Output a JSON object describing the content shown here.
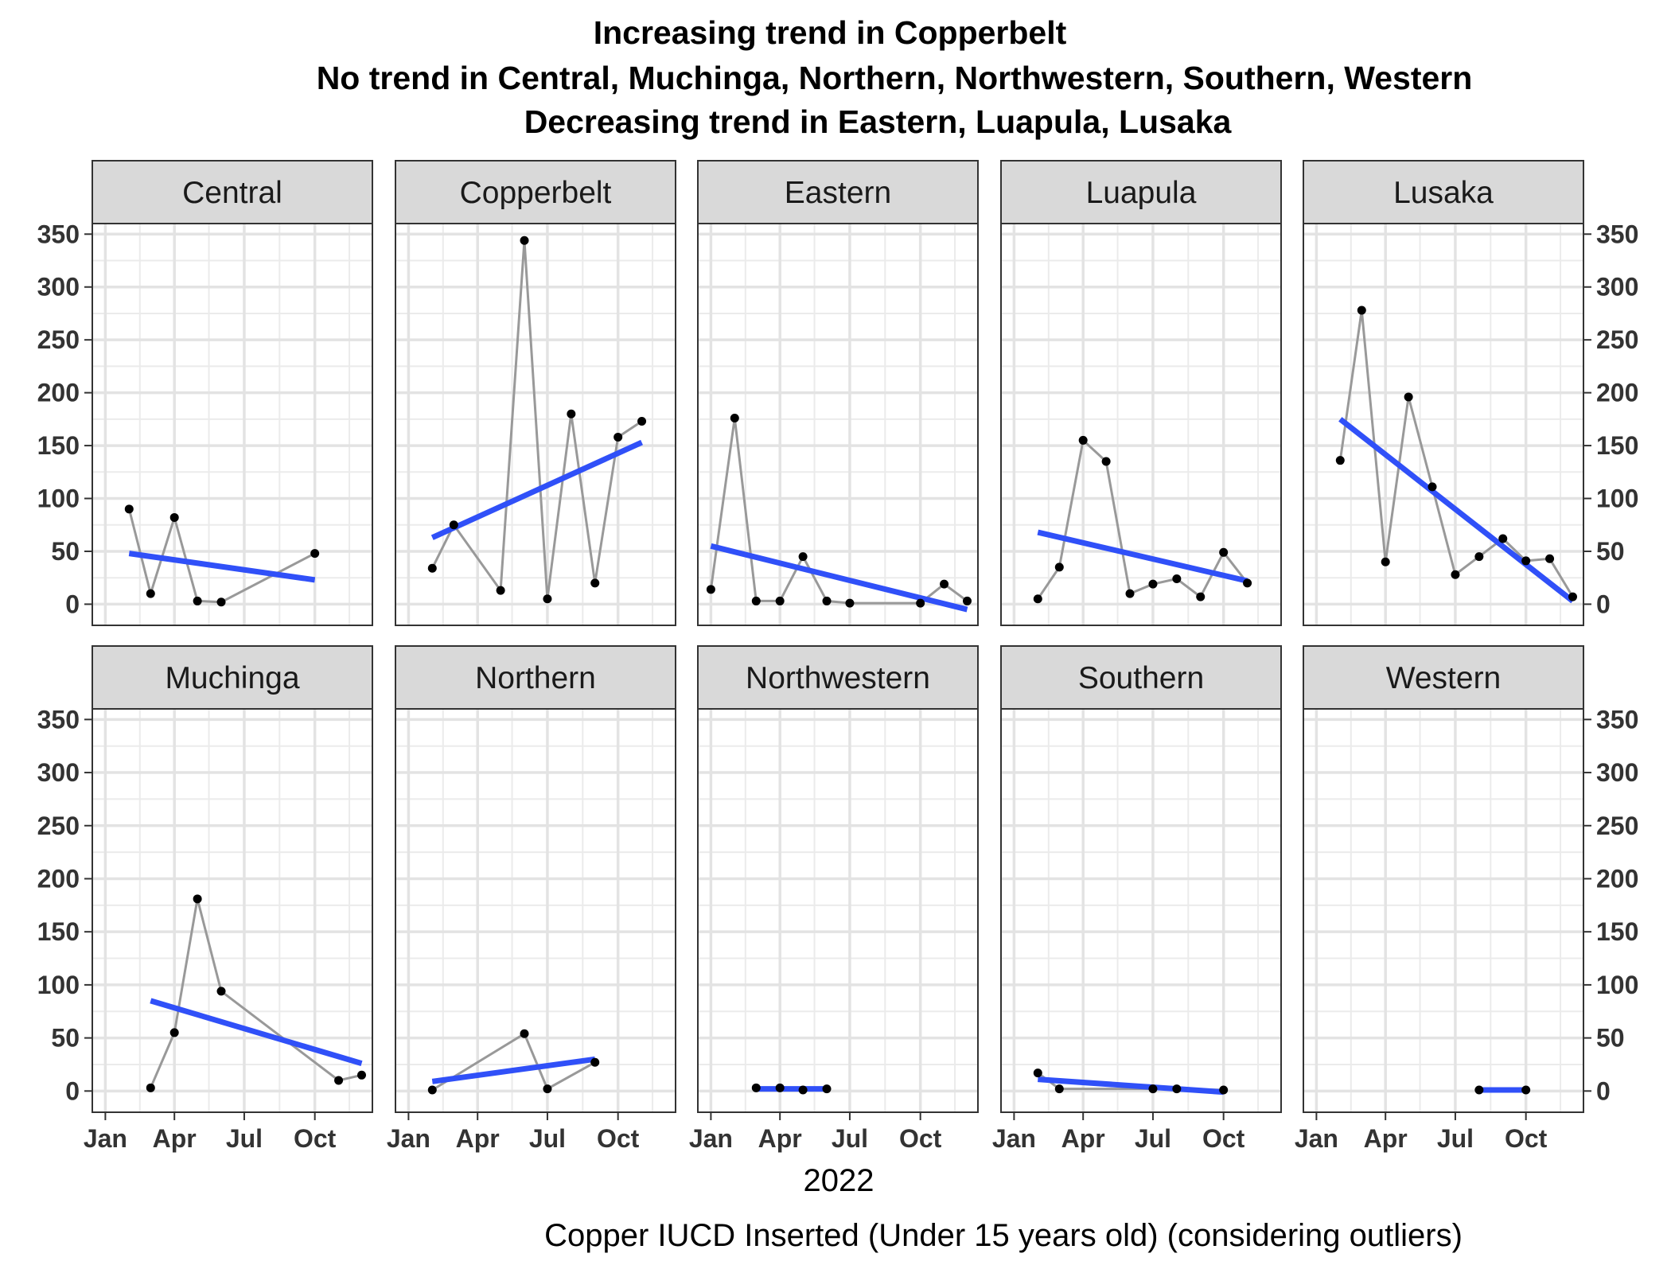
{
  "chart_data": {
    "type": "line",
    "title": "Increasing trend in Copperbelt",
    "subtitle_lines": [
      "No trend in Central, Muchinga, Northern, Northwestern, Southern, Western",
      "Decreasing trend in Eastern, Luapula, Lusaka"
    ],
    "xlabel": "2022",
    "caption": "Copper IUCD Inserted (Under 15 years old) (considering outliers)",
    "x_ticks": [
      "Jan",
      "Apr",
      "Jul",
      "Oct"
    ],
    "y_ticks": [
      0,
      50,
      100,
      150,
      200,
      250,
      300,
      350
    ],
    "ylim": [
      -20,
      360
    ],
    "xlim": [
      "2021-12-15",
      "2022-12-15"
    ],
    "grid": true,
    "line_color": "#999999",
    "point_color": "#000000",
    "trend_color": "#3050F8",
    "facets": [
      {
        "name": "Central",
        "points": [
          [
            "2022-02-01",
            90
          ],
          [
            "2022-03-01",
            10
          ],
          [
            "2022-04-01",
            82
          ],
          [
            "2022-05-01",
            3
          ],
          [
            "2022-06-01",
            2
          ],
          [
            "2022-10-01",
            48
          ]
        ],
        "trend": [
          [
            "2022-02-01",
            48
          ],
          [
            "2022-10-01",
            23
          ]
        ]
      },
      {
        "name": "Copperbelt",
        "points": [
          [
            "2022-02-01",
            34
          ],
          [
            "2022-03-01",
            75
          ],
          [
            "2022-05-01",
            13
          ],
          [
            "2022-06-01",
            344
          ],
          [
            "2022-07-01",
            5
          ],
          [
            "2022-08-01",
            180
          ],
          [
            "2022-09-01",
            20
          ],
          [
            "2022-10-01",
            158
          ],
          [
            "2022-11-01",
            173
          ]
        ],
        "trend": [
          [
            "2022-02-01",
            63
          ],
          [
            "2022-11-01",
            153
          ]
        ]
      },
      {
        "name": "Eastern",
        "points": [
          [
            "2022-01-01",
            14
          ],
          [
            "2022-02-01",
            176
          ],
          [
            "2022-03-01",
            3
          ],
          [
            "2022-04-01",
            3
          ],
          [
            "2022-05-01",
            45
          ],
          [
            "2022-06-01",
            3
          ],
          [
            "2022-07-01",
            1
          ],
          [
            "2022-10-01",
            1
          ],
          [
            "2022-11-01",
            19
          ],
          [
            "2022-12-01",
            3
          ]
        ],
        "trend": [
          [
            "2022-01-01",
            55
          ],
          [
            "2022-12-01",
            -5
          ]
        ]
      },
      {
        "name": "Luapula",
        "points": [
          [
            "2022-02-01",
            5
          ],
          [
            "2022-03-01",
            35
          ],
          [
            "2022-04-01",
            155
          ],
          [
            "2022-05-01",
            135
          ],
          [
            "2022-06-01",
            10
          ],
          [
            "2022-07-01",
            19
          ],
          [
            "2022-08-01",
            24
          ],
          [
            "2022-09-01",
            7
          ],
          [
            "2022-10-01",
            49
          ],
          [
            "2022-11-01",
            20
          ]
        ],
        "trend": [
          [
            "2022-02-01",
            68
          ],
          [
            "2022-11-01",
            22
          ]
        ]
      },
      {
        "name": "Lusaka",
        "points": [
          [
            "2022-02-01",
            136
          ],
          [
            "2022-03-01",
            278
          ],
          [
            "2022-04-01",
            40
          ],
          [
            "2022-05-01",
            196
          ],
          [
            "2022-06-01",
            111
          ],
          [
            "2022-07-01",
            28
          ],
          [
            "2022-08-01",
            45
          ],
          [
            "2022-09-01",
            62
          ],
          [
            "2022-10-01",
            41
          ],
          [
            "2022-11-01",
            43
          ],
          [
            "2022-12-01",
            7
          ]
        ],
        "trend": [
          [
            "2022-02-01",
            175
          ],
          [
            "2022-12-01",
            3
          ]
        ]
      },
      {
        "name": "Muchinga",
        "points": [
          [
            "2022-03-01",
            3
          ],
          [
            "2022-04-01",
            55
          ],
          [
            "2022-05-01",
            181
          ],
          [
            "2022-06-01",
            94
          ],
          [
            "2022-11-01",
            10
          ],
          [
            "2022-12-01",
            15
          ]
        ],
        "trend": [
          [
            "2022-03-01",
            85
          ],
          [
            "2022-12-01",
            26
          ]
        ]
      },
      {
        "name": "Northern",
        "points": [
          [
            "2022-02-01",
            1
          ],
          [
            "2022-06-01",
            54
          ],
          [
            "2022-07-01",
            2
          ],
          [
            "2022-09-01",
            27
          ]
        ],
        "trend": [
          [
            "2022-02-01",
            9
          ],
          [
            "2022-09-01",
            30
          ]
        ]
      },
      {
        "name": "Northwestern",
        "points": [
          [
            "2022-03-01",
            3
          ],
          [
            "2022-04-01",
            3
          ],
          [
            "2022-05-01",
            1
          ],
          [
            "2022-06-01",
            2
          ]
        ],
        "trend": [
          [
            "2022-03-01",
            2
          ],
          [
            "2022-06-01",
            2
          ]
        ]
      },
      {
        "name": "Southern",
        "points": [
          [
            "2022-02-01",
            17
          ],
          [
            "2022-03-01",
            2
          ],
          [
            "2022-07-01",
            2
          ],
          [
            "2022-08-01",
            2
          ],
          [
            "2022-10-01",
            1
          ]
        ],
        "trend": [
          [
            "2022-02-01",
            11
          ],
          [
            "2022-10-01",
            -1
          ]
        ]
      },
      {
        "name": "Western",
        "points": [
          [
            "2022-08-01",
            1
          ],
          [
            "2022-10-01",
            1
          ]
        ],
        "trend": [
          [
            "2022-08-01",
            1
          ],
          [
            "2022-10-01",
            1
          ]
        ]
      }
    ]
  }
}
